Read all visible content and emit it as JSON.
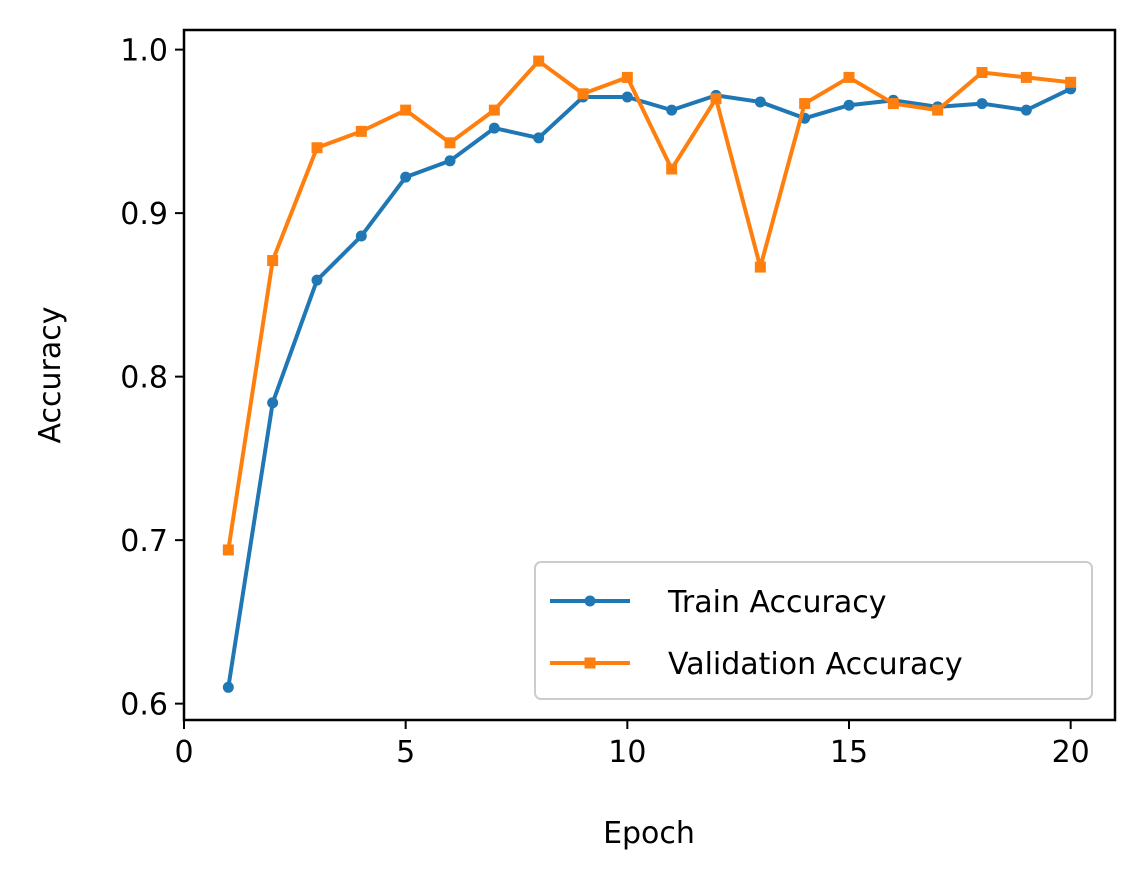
{
  "chart_data": {
    "type": "line",
    "xlabel": "Epoch",
    "ylabel": "Accuracy",
    "xlim": [
      0,
      21
    ],
    "ylim": [
      0.59,
      1.012
    ],
    "xticks": [
      0,
      5,
      10,
      15,
      20
    ],
    "xtick_labels": [
      "0",
      "5",
      "10",
      "15",
      "20"
    ],
    "yticks": [
      0.6,
      0.7,
      0.8,
      0.9,
      1.0
    ],
    "ytick_labels": [
      "0.6",
      "0.7",
      "0.8",
      "0.9",
      "1.0"
    ],
    "grid": false,
    "legend_position": "lower-right",
    "x": [
      1,
      2,
      3,
      4,
      5,
      6,
      7,
      8,
      9,
      10,
      11,
      12,
      13,
      14,
      15,
      16,
      17,
      18,
      19,
      20
    ],
    "series": [
      {
        "name": "Train Accuracy",
        "color": "#1f77b4",
        "marker": "circle",
        "values": [
          0.61,
          0.784,
          0.859,
          0.886,
          0.922,
          0.932,
          0.952,
          0.946,
          0.971,
          0.971,
          0.963,
          0.972,
          0.968,
          0.958,
          0.966,
          0.969,
          0.965,
          0.967,
          0.963,
          0.976
        ]
      },
      {
        "name": "Validation Accuracy",
        "color": "#ff7f0e",
        "marker": "square",
        "values": [
          0.694,
          0.871,
          0.94,
          0.95,
          0.963,
          0.943,
          0.963,
          0.993,
          0.973,
          0.983,
          0.927,
          0.97,
          0.867,
          0.967,
          0.983,
          0.967,
          0.963,
          0.986,
          0.983,
          0.98
        ]
      }
    ]
  }
}
